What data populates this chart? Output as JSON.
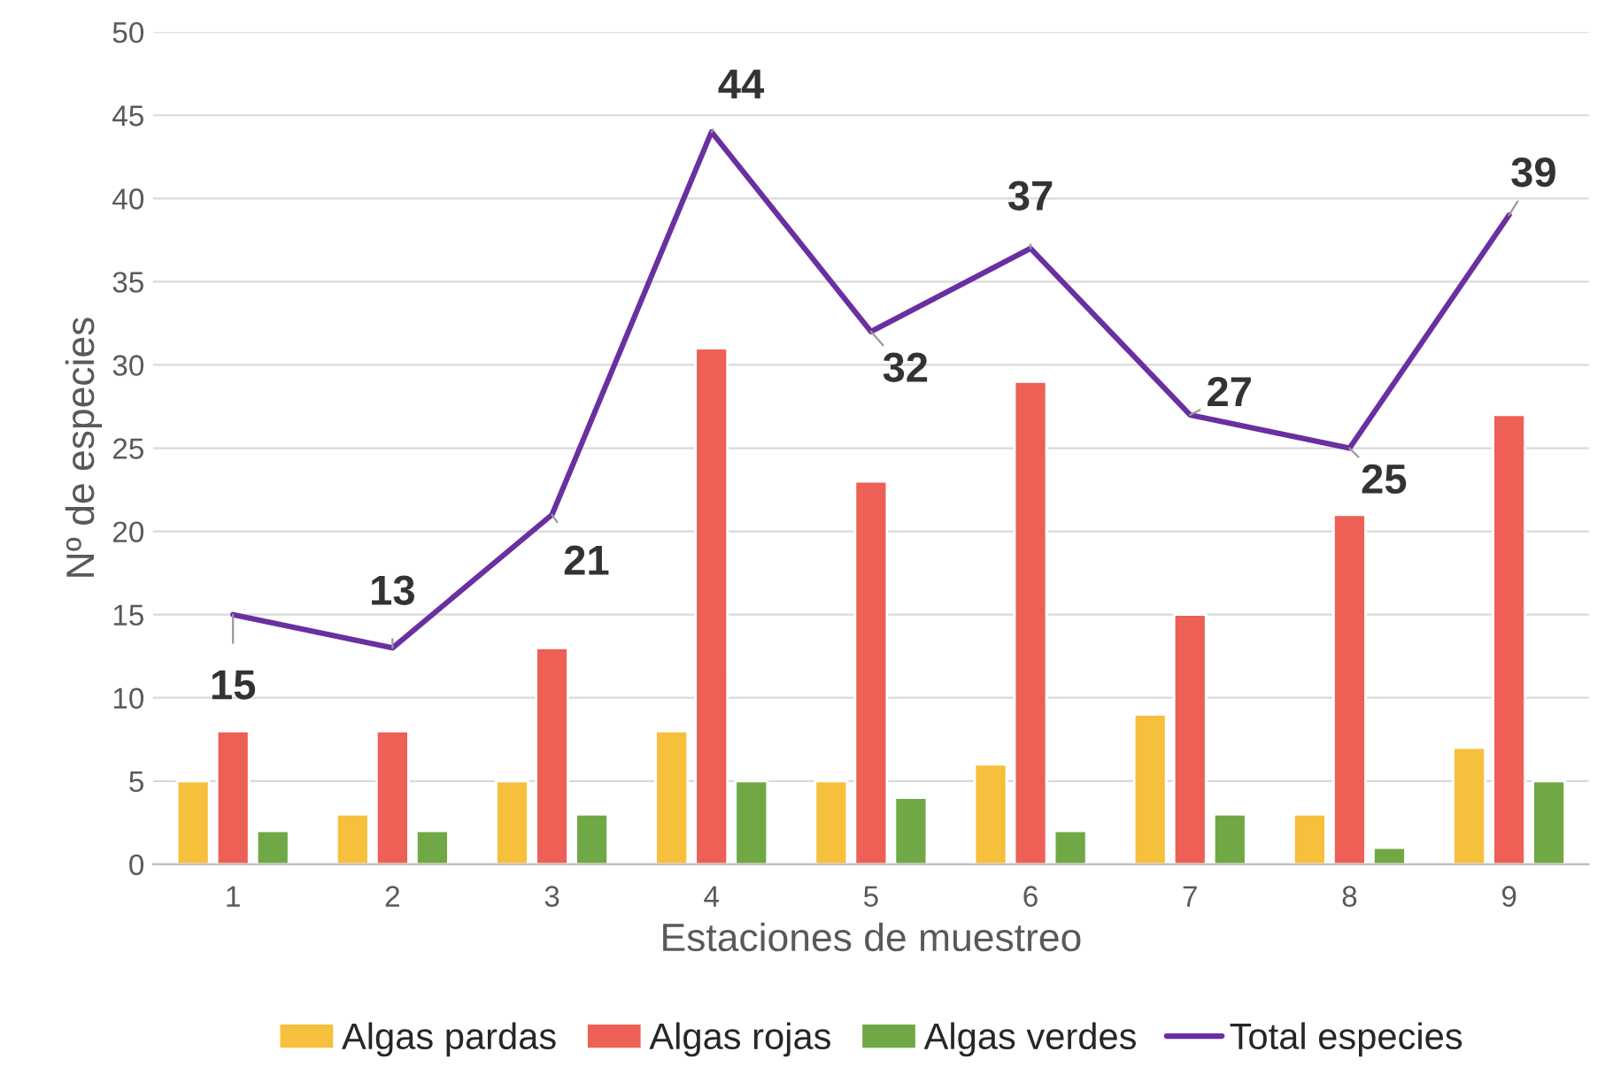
{
  "chart_data": {
    "type": "bar",
    "xlabel": "Estaciones de muestreo",
    "ylabel": "Nº de especies",
    "categories": [
      "1",
      "2",
      "3",
      "4",
      "5",
      "6",
      "7",
      "8",
      "9"
    ],
    "series": [
      {
        "name": "Algas pardas",
        "color": "#f6bf3c",
        "values": [
          5,
          3,
          5,
          8,
          5,
          6,
          9,
          3,
          7
        ]
      },
      {
        "name": "Algas rojas",
        "color": "#ee6055",
        "values": [
          8,
          8,
          13,
          31,
          23,
          29,
          15,
          21,
          27
        ]
      },
      {
        "name": "Algas verdes",
        "color": "#70a845",
        "values": [
          2,
          2,
          3,
          5,
          4,
          2,
          3,
          1,
          5
        ]
      },
      {
        "name": "Total especies",
        "type": "line",
        "color": "#6a2fa0",
        "values": [
          15,
          13,
          21,
          44,
          32,
          37,
          27,
          25,
          39
        ],
        "value_labels": [
          "15",
          "13",
          "21",
          "44",
          "32",
          "37",
          "27",
          "25",
          "39"
        ]
      }
    ],
    "ylim": [
      0,
      50
    ],
    "yticks": [
      0,
      5,
      10,
      15,
      20,
      25,
      30,
      35,
      40,
      45,
      50
    ],
    "grid": "y",
    "legend": "bottom",
    "marker": "none"
  }
}
